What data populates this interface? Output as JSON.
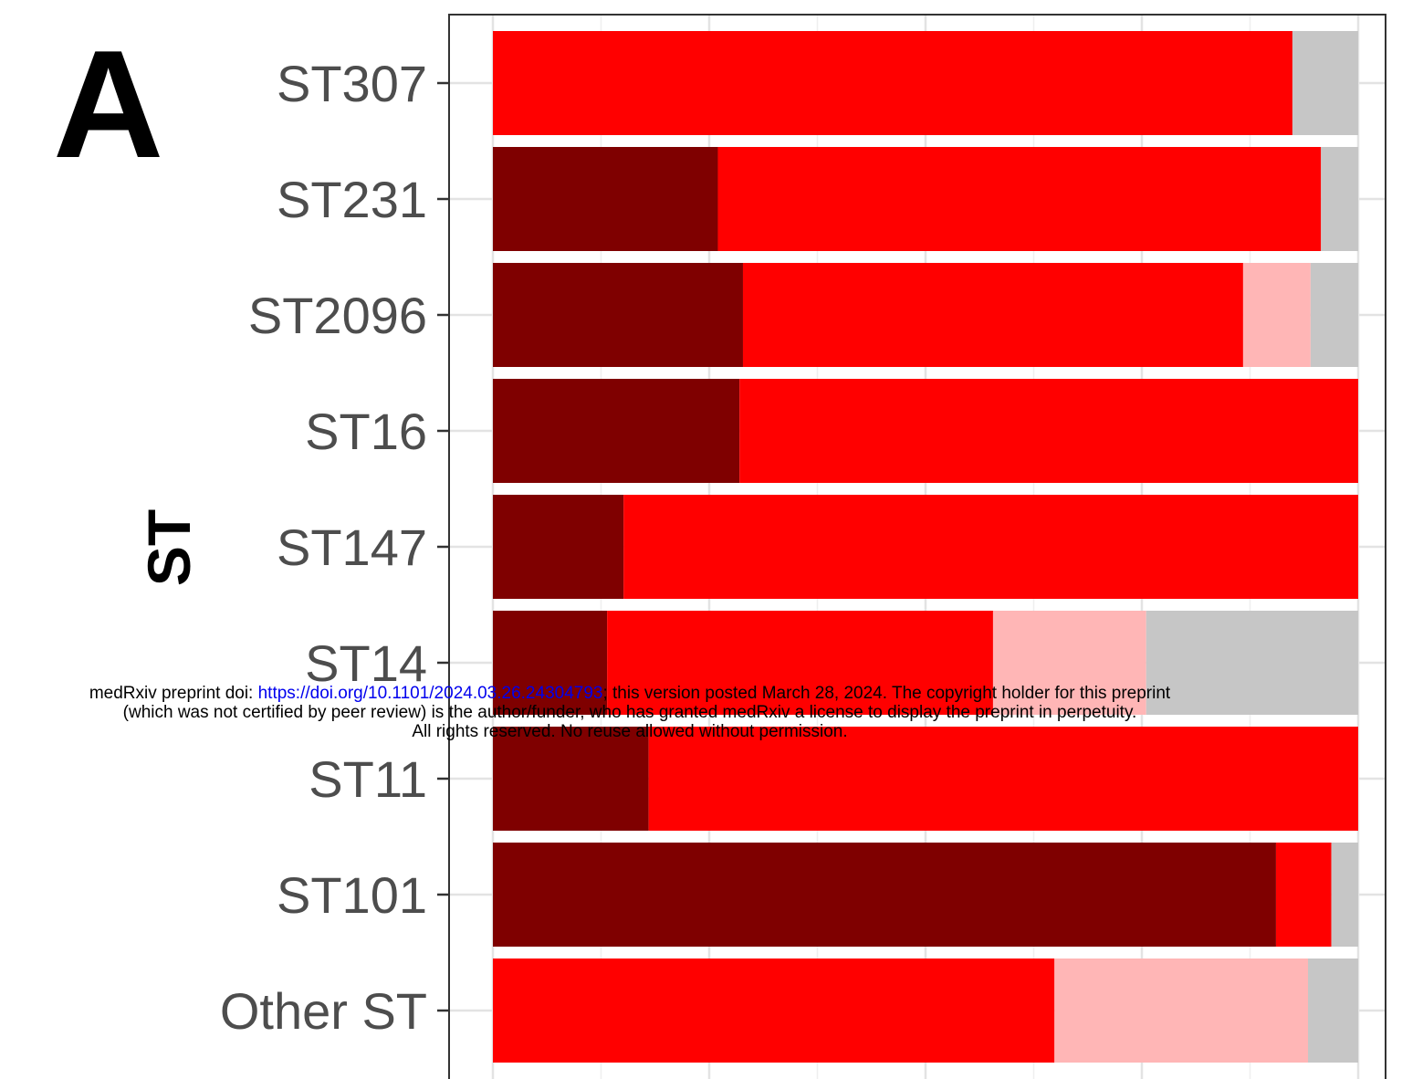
{
  "panel_label": "A",
  "chart_data": {
    "type": "bar",
    "orientation": "horizontal",
    "stacked": true,
    "ylabel": "ST",
    "xlabel": "",
    "xlim": [
      0,
      1
    ],
    "grid": true,
    "categories": [
      "ST307",
      "ST231",
      "ST2096",
      "ST16",
      "ST147",
      "ST14",
      "ST11",
      "ST101",
      "Other ST"
    ],
    "series": [
      {
        "color": "#7f0000",
        "values": [
          0.0,
          0.26,
          0.289,
          0.285,
          0.151,
          0.132,
          0.18,
          0.905,
          0.0
        ]
      },
      {
        "color": "#ff0000",
        "values": [
          0.924,
          0.697,
          0.578,
          0.715,
          0.849,
          0.446,
          0.82,
          0.064,
          0.649
        ]
      },
      {
        "color": "#ffb6b6",
        "values": [
          0.0,
          0.0,
          0.078,
          0.0,
          0.0,
          0.177,
          0.0,
          0.0,
          0.293
        ]
      },
      {
        "color": "#c6c6c6",
        "values": [
          0.076,
          0.043,
          0.055,
          0.0,
          0.0,
          0.245,
          0.0,
          0.031,
          0.058
        ]
      }
    ]
  },
  "watermark": {
    "line1_prefix": "medRxiv preprint doi: ",
    "line1_link": "https://doi.org/10.1101/2024.03.26.24304793",
    "line1_suffix": "; this version posted March 28, 2024. The copyright holder for this preprint",
    "line2": "(which was not certified by peer review) is the author/funder, who has granted medRxiv a license to display the preprint in perpetuity.",
    "line3": "All rights reserved. No reuse allowed without permission."
  }
}
